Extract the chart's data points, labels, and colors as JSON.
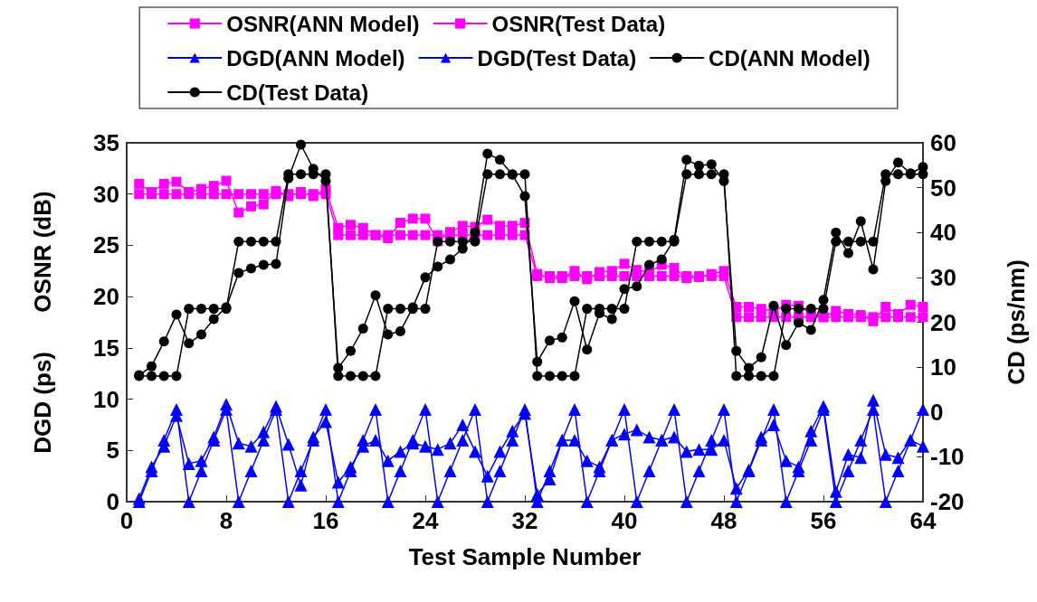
{
  "chart_data": {
    "type": "line",
    "xlabel": "Test Sample Number",
    "ylabel": "DGD (ps)      OSNR (dB)",
    "y2label": "CD (ps/nm)",
    "x": [
      1,
      2,
      3,
      4,
      5,
      6,
      7,
      8,
      9,
      10,
      11,
      12,
      13,
      14,
      15,
      16,
      17,
      18,
      19,
      20,
      21,
      22,
      23,
      24,
      25,
      26,
      27,
      28,
      29,
      30,
      31,
      32,
      33,
      34,
      35,
      36,
      37,
      38,
      39,
      40,
      41,
      42,
      43,
      44,
      45,
      46,
      47,
      48,
      49,
      50,
      51,
      52,
      53,
      54,
      55,
      56,
      57,
      58,
      59,
      60,
      61,
      62,
      63,
      64
    ],
    "xlim": [
      0,
      64
    ],
    "xticks": [
      0,
      8,
      16,
      24,
      32,
      40,
      48,
      56,
      64
    ],
    "ylim": [
      0,
      35
    ],
    "yticks": [
      0,
      5,
      10,
      15,
      20,
      25,
      30,
      35
    ],
    "y2lim": [
      -20,
      60
    ],
    "y2ticks": [
      -20,
      -10,
      0,
      10,
      20,
      30,
      40,
      50,
      60
    ],
    "grid": false,
    "legend": "top",
    "line_style": "solid",
    "series": [
      {
        "name": "OSNR(ANN Model)",
        "color": "#ff00ff",
        "marker": "square",
        "values": [
          31,
          30.2,
          31,
          31.2,
          30.2,
          30.5,
          30.8,
          31.3,
          28.2,
          28.8,
          29,
          30.3,
          29.8,
          30.2,
          29.8,
          30.5,
          26.7,
          27,
          26.7,
          26,
          25.7,
          27.2,
          27.6,
          27.6,
          25.4,
          26.3,
          26.9,
          26.8,
          27.5,
          26.9,
          26.9,
          27.2,
          22.2,
          21.8,
          21.8,
          22.5,
          21.7,
          22.4,
          22.5,
          23.2,
          22.6,
          22.4,
          23.1,
          22.8,
          21.8,
          21.9,
          22.2,
          22.5,
          19,
          19,
          18.8,
          18.6,
          19.2,
          19.1,
          18.3,
          18,
          18.6,
          18.3,
          18.2,
          17.6,
          19,
          18.3,
          19.2,
          19
        ]
      },
      {
        "name": "OSNR(Test Data)",
        "color": "#ff00ff",
        "marker": "square",
        "values": [
          30,
          30,
          30,
          30,
          30,
          30,
          30,
          30,
          30,
          30,
          30,
          30,
          30,
          30,
          30,
          30,
          26,
          26,
          26,
          26,
          26,
          26,
          26,
          26,
          26,
          26,
          26,
          26,
          26,
          26,
          26,
          26,
          22,
          22,
          22,
          22,
          22,
          22,
          22,
          22,
          22,
          22,
          22,
          22,
          22,
          22,
          22,
          22,
          18,
          18,
          18,
          18,
          18,
          18,
          18,
          18,
          18,
          18,
          18,
          18,
          18,
          18,
          18,
          18
        ]
      },
      {
        "name": "DGD(ANN Model)",
        "color": "#0000ff",
        "marker": "triangle",
        "values": [
          0.3,
          3.4,
          5.4,
          8.4,
          3.7,
          4,
          6.3,
          9.5,
          5.7,
          5.4,
          6.8,
          9.3,
          5.6,
          1.6,
          6.3,
          7.8,
          1.9,
          3.4,
          5.4,
          6,
          4,
          4.9,
          5.7,
          5.4,
          5.1,
          5.7,
          7.5,
          4.9,
          2.5,
          4.9,
          6.9,
          8.6,
          0.7,
          2.2,
          6,
          6,
          4,
          3.4,
          6,
          6.6,
          7,
          6.3,
          6,
          6.3,
          4.9,
          5.1,
          5.1,
          6,
          1.3,
          3.1,
          6.3,
          7.5,
          4,
          3.4,
          6.9,
          9.3,
          1,
          4.6,
          4.3,
          9.9,
          4.6,
          4.3,
          6,
          5.4
        ]
      },
      {
        "name": "DGD(Test Data)",
        "color": "#0000ff",
        "marker": "triangle",
        "values": [
          0,
          3,
          6,
          9,
          0,
          3,
          6,
          9,
          0,
          3,
          6,
          9,
          0,
          3,
          6,
          9,
          0,
          3,
          6,
          9,
          0,
          3,
          6,
          9,
          0,
          3,
          6,
          9,
          0,
          3,
          6,
          9,
          0,
          3,
          6,
          9,
          0,
          3,
          6,
          9,
          0,
          3,
          6,
          9,
          0,
          3,
          6,
          9,
          0,
          3,
          6,
          9,
          0,
          3,
          6,
          9,
          0,
          3,
          6,
          9,
          0,
          3,
          6,
          9
        ]
      },
      {
        "name": "CD(ANN Model)",
        "color": "#000000",
        "marker": "circle",
        "axis": "y2",
        "values": [
          8.2,
          10.2,
          15.7,
          21.7,
          15.3,
          17.3,
          20.7,
          23.3,
          31,
          32,
          32.8,
          33,
          52.1,
          59.6,
          54.2,
          51.5,
          9.8,
          13.6,
          18.6,
          26,
          17.3,
          18,
          23.3,
          30,
          32.4,
          34,
          36.4,
          40,
          57.6,
          56.2,
          52.9,
          48.1,
          11.2,
          15.9,
          16.6,
          24.7,
          13.9,
          22,
          20.7,
          27.4,
          28,
          32.8,
          34,
          38.4,
          56.2,
          54.9,
          55.2,
          51.5,
          13.6,
          9.8,
          12.2,
          23.7,
          14.9,
          19.9,
          18.3,
          25,
          40,
          35.4,
          42.5,
          31.8,
          51.5,
          55.6,
          53.2,
          54.6
        ]
      },
      {
        "name": "CD(Test Data)",
        "color": "#000000",
        "marker": "circle",
        "axis": "y2",
        "values": [
          8,
          8,
          8,
          8,
          23,
          23,
          23,
          23,
          38,
          38,
          38,
          38,
          53,
          53,
          53,
          53,
          8,
          8,
          8,
          8,
          23,
          23,
          23,
          23,
          38,
          38,
          38,
          38,
          53,
          53,
          53,
          53,
          8,
          8,
          8,
          8,
          23,
          23,
          23,
          23,
          38,
          38,
          38,
          38,
          53,
          53,
          53,
          53,
          8,
          8,
          8,
          8,
          23,
          23,
          23,
          23,
          38,
          38,
          38,
          38,
          53,
          53,
          53,
          53
        ]
      }
    ]
  }
}
